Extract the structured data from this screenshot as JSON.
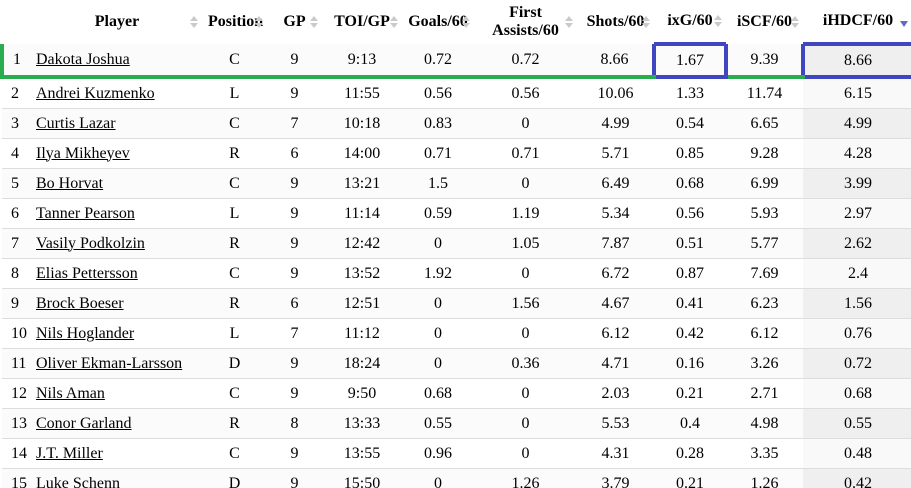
{
  "table": {
    "columns": [
      {
        "key": "rank",
        "label": "",
        "sortable": false
      },
      {
        "key": "player",
        "label": "Player",
        "sortable": true
      },
      {
        "key": "position",
        "label": "Position",
        "sortable": true
      },
      {
        "key": "gp",
        "label": "GP",
        "sortable": true
      },
      {
        "key": "toi",
        "label": "TOI/GP",
        "sortable": true
      },
      {
        "key": "goals60",
        "label": "Goals/60",
        "sortable": true
      },
      {
        "key": "fa60",
        "label": "First Assists/60",
        "sortable": true
      },
      {
        "key": "shots60",
        "label": "Shots/60",
        "sortable": true
      },
      {
        "key": "ixg60",
        "label": "ixG/60",
        "sortable": true
      },
      {
        "key": "iscf60",
        "label": "iSCF/60",
        "sortable": true
      },
      {
        "key": "ihdcf60",
        "label": "iHDCF/60",
        "sortable": true,
        "sorted": "desc"
      }
    ],
    "rows": [
      {
        "rank": "1",
        "player": "Dakota Joshua",
        "position": "C",
        "gp": "9",
        "toi": "9:13",
        "goals60": "0.72",
        "fa60": "0.72",
        "shots60": "8.66",
        "ixg60": "1.67",
        "iscf60": "9.39",
        "ihdcf60": "8.66"
      },
      {
        "rank": "2",
        "player": "Andrei Kuzmenko",
        "position": "L",
        "gp": "9",
        "toi": "11:55",
        "goals60": "0.56",
        "fa60": "0.56",
        "shots60": "10.06",
        "ixg60": "1.33",
        "iscf60": "11.74",
        "ihdcf60": "6.15"
      },
      {
        "rank": "3",
        "player": "Curtis Lazar",
        "position": "C",
        "gp": "7",
        "toi": "10:18",
        "goals60": "0.83",
        "fa60": "0",
        "shots60": "4.99",
        "ixg60": "0.54",
        "iscf60": "6.65",
        "ihdcf60": "4.99"
      },
      {
        "rank": "4",
        "player": "Ilya Mikheyev",
        "position": "R",
        "gp": "6",
        "toi": "14:00",
        "goals60": "0.71",
        "fa60": "0.71",
        "shots60": "5.71",
        "ixg60": "0.85",
        "iscf60": "9.28",
        "ihdcf60": "4.28"
      },
      {
        "rank": "5",
        "player": "Bo Horvat",
        "position": "C",
        "gp": "9",
        "toi": "13:21",
        "goals60": "1.5",
        "fa60": "0",
        "shots60": "6.49",
        "ixg60": "0.68",
        "iscf60": "6.99",
        "ihdcf60": "3.99"
      },
      {
        "rank": "6",
        "player": "Tanner Pearson",
        "position": "L",
        "gp": "9",
        "toi": "11:14",
        "goals60": "0.59",
        "fa60": "1.19",
        "shots60": "5.34",
        "ixg60": "0.56",
        "iscf60": "5.93",
        "ihdcf60": "2.97"
      },
      {
        "rank": "7",
        "player": "Vasily Podkolzin",
        "position": "R",
        "gp": "9",
        "toi": "12:42",
        "goals60": "0",
        "fa60": "1.05",
        "shots60": "7.87",
        "ixg60": "0.51",
        "iscf60": "5.77",
        "ihdcf60": "2.62"
      },
      {
        "rank": "8",
        "player": "Elias Pettersson",
        "position": "C",
        "gp": "9",
        "toi": "13:52",
        "goals60": "1.92",
        "fa60": "0",
        "shots60": "6.72",
        "ixg60": "0.87",
        "iscf60": "7.69",
        "ihdcf60": "2.4"
      },
      {
        "rank": "9",
        "player": "Brock Boeser",
        "position": "R",
        "gp": "6",
        "toi": "12:51",
        "goals60": "0",
        "fa60": "1.56",
        "shots60": "4.67",
        "ixg60": "0.41",
        "iscf60": "6.23",
        "ihdcf60": "1.56"
      },
      {
        "rank": "10",
        "player": "Nils Hoglander",
        "position": "L",
        "gp": "7",
        "toi": "11:12",
        "goals60": "0",
        "fa60": "0",
        "shots60": "6.12",
        "ixg60": "0.42",
        "iscf60": "6.12",
        "ihdcf60": "0.76"
      },
      {
        "rank": "11",
        "player": "Oliver Ekman-Larsson",
        "position": "D",
        "gp": "9",
        "toi": "18:24",
        "goals60": "0",
        "fa60": "0.36",
        "shots60": "4.71",
        "ixg60": "0.16",
        "iscf60": "3.26",
        "ihdcf60": "0.72"
      },
      {
        "rank": "12",
        "player": "Nils Aman",
        "position": "C",
        "gp": "9",
        "toi": "9:50",
        "goals60": "0.68",
        "fa60": "0",
        "shots60": "2.03",
        "ixg60": "0.21",
        "iscf60": "2.71",
        "ihdcf60": "0.68"
      },
      {
        "rank": "13",
        "player": "Conor Garland",
        "position": "R",
        "gp": "8",
        "toi": "13:33",
        "goals60": "0.55",
        "fa60": "0",
        "shots60": "5.53",
        "ixg60": "0.4",
        "iscf60": "4.98",
        "ihdcf60": "0.55"
      },
      {
        "rank": "14",
        "player": "J.T. Miller",
        "position": "C",
        "gp": "9",
        "toi": "13:55",
        "goals60": "0.96",
        "fa60": "0",
        "shots60": "4.31",
        "ixg60": "0.28",
        "iscf60": "3.35",
        "ihdcf60": "0.48"
      },
      {
        "rank": "15",
        "player": "Luke Schenn",
        "position": "D",
        "gp": "9",
        "toi": "15:50",
        "goals60": "0",
        "fa60": "1.26",
        "shots60": "3.79",
        "ixg60": "0.21",
        "iscf60": "1.26",
        "ihdcf60": "0.42"
      }
    ],
    "sorted_column": "ihdcf60",
    "sort_direction": "desc",
    "highlight": {
      "row_rank": "1",
      "row_border_color": "#2aad4e",
      "cell_border_color": "#4045c0",
      "boxed_columns": [
        "ixg60",
        "ihdcf60"
      ]
    },
    "colors": {
      "sort_icon_inactive": "#cacaca",
      "sort_icon_active": "#6468cd",
      "row_divider": "#dddddd",
      "sorted_column_odd_bg": "#efefef",
      "sorted_column_even_bg": "#f9f9f9"
    }
  }
}
